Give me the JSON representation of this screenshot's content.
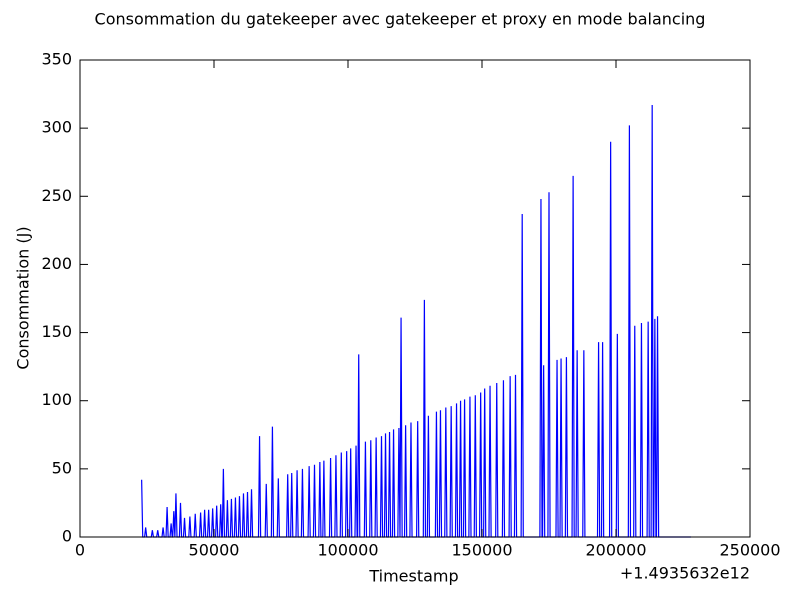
{
  "chart_data": {
    "type": "line",
    "title": "Consommation du gatekeeper avec gatekeeper et proxy en mode balancing",
    "x_label": "Timestamp",
    "y_label": "Consommation (J)",
    "x_offset_label": "+1.4935632e12",
    "color": "#0000ff",
    "xlim": [
      0,
      250000
    ],
    "xticks": [
      0,
      50000,
      100000,
      150000,
      200000,
      250000
    ],
    "ylim": [
      0,
      350
    ],
    "yticks": [
      0,
      50,
      100,
      150,
      200,
      250,
      300,
      350
    ],
    "x": [
      23000,
      23400,
      24100,
      24500,
      24900,
      26600,
      27000,
      27400,
      28600,
      29000,
      29400,
      30600,
      31000,
      31400,
      32100,
      32500,
      32900,
      33600,
      34000,
      34400,
      34600,
      35000,
      35400,
      35400,
      35800,
      36200,
      37100,
      37500,
      37900,
      38600,
      39000,
      39400,
      40600,
      41000,
      41400,
      42600,
      43000,
      43400,
      44600,
      45000,
      45400,
      46100,
      46500,
      46900,
      47600,
      48000,
      48400,
      49100,
      49500,
      49900,
      50600,
      51000,
      51400,
      52100,
      52500,
      52900,
      53100,
      53500,
      53900,
      54600,
      55000,
      55400,
      56100,
      56500,
      56900,
      57600,
      58000,
      58400,
      59100,
      59500,
      59900,
      60600,
      61000,
      61400,
      62100,
      62500,
      62900,
      63600,
      64000,
      64400,
      66600,
      67000,
      67400,
      69100,
      69500,
      69900,
      71400,
      71800,
      72200,
      73600,
      74000,
      74400,
      77100,
      77500,
      77900,
      78600,
      79000,
      79400,
      80600,
      81000,
      81400,
      82600,
      83000,
      83400,
      85100,
      85500,
      85900,
      87100,
      87500,
      87900,
      89100,
      89500,
      89900,
      90600,
      91000,
      91400,
      93100,
      93500,
      93900,
      95100,
      95500,
      95900,
      97100,
      97500,
      97900,
      99100,
      99500,
      99900,
      100600,
      101000,
      101400,
      102600,
      103000,
      103400,
      103600,
      104000,
      104400,
      106100,
      106500,
      106900,
      108100,
      108500,
      108900,
      110100,
      110500,
      110900,
      112100,
      112500,
      112900,
      113600,
      114000,
      114400,
      115100,
      115500,
      115900,
      116600,
      117000,
      117400,
      118600,
      119000,
      119400,
      119400,
      119800,
      120200,
      121100,
      121500,
      121900,
      123100,
      123500,
      123900,
      125600,
      126000,
      126400,
      128100,
      128500,
      128900,
      129600,
      130000,
      130400,
      132600,
      133000,
      133400,
      134100,
      134500,
      134900,
      136100,
      136500,
      136900,
      138100,
      138500,
      138900,
      140100,
      140500,
      140900,
      141600,
      142000,
      142400,
      143100,
      143500,
      143900,
      145100,
      145500,
      145900,
      147100,
      147500,
      147900,
      149100,
      149500,
      149900,
      150600,
      151000,
      151400,
      152600,
      153000,
      153400,
      155100,
      155500,
      155900,
      157600,
      158000,
      158400,
      160100,
      160500,
      160900,
      162100,
      162500,
      162900,
      164600,
      165000,
      165400,
      171600,
      172000,
      172400,
      172600,
      173000,
      173400,
      174600,
      175000,
      175400,
      177600,
      178000,
      178400,
      179100,
      179500,
      179900,
      181100,
      181500,
      181900,
      183600,
      184000,
      184400,
      185100,
      185500,
      185900,
      187600,
      188000,
      188400,
      193100,
      193500,
      193900,
      194600,
      195000,
      195400,
      197600,
      198000,
      198400,
      200100,
      200500,
      200900,
      204600,
      205000,
      205400,
      206600,
      207000,
      207400,
      209100,
      209500,
      209900,
      211600,
      212000,
      212400,
      213100,
      213500,
      213900,
      214100,
      214500,
      214900,
      215100,
      215500,
      215900,
      228000
    ],
    "values": [
      42,
      0,
      0,
      7,
      0,
      0,
      5,
      0,
      0,
      5,
      0,
      0,
      7,
      0,
      0,
      22,
      0,
      0,
      10,
      0,
      0,
      19,
      0,
      0,
      32,
      0,
      0,
      25,
      0,
      0,
      14,
      0,
      0,
      15,
      0,
      0,
      17,
      0,
      0,
      18,
      0,
      0,
      20,
      0,
      0,
      20,
      0,
      0,
      21,
      0,
      0,
      23,
      0,
      0,
      24,
      0,
      0,
      50,
      0,
      0,
      27,
      0,
      0,
      28,
      0,
      0,
      29,
      0,
      0,
      30,
      0,
      0,
      32,
      0,
      0,
      33,
      0,
      0,
      35,
      0,
      0,
      74,
      0,
      0,
      39,
      0,
      0,
      81,
      0,
      0,
      43,
      0,
      0,
      46,
      0,
      0,
      47,
      0,
      0,
      49,
      0,
      0,
      50,
      0,
      0,
      52,
      0,
      0,
      53,
      0,
      0,
      55,
      0,
      0,
      56,
      0,
      0,
      58,
      0,
      0,
      60,
      0,
      0,
      62,
      0,
      0,
      63,
      0,
      0,
      65,
      0,
      0,
      67,
      0,
      0,
      134,
      0,
      0,
      70,
      0,
      0,
      71,
      0,
      0,
      73,
      0,
      0,
      74,
      0,
      0,
      76,
      0,
      0,
      77,
      0,
      0,
      79,
      0,
      0,
      80,
      0,
      0,
      161,
      0,
      0,
      82,
      0,
      0,
      84,
      0,
      0,
      85,
      0,
      0,
      174,
      0,
      0,
      89,
      0,
      0,
      92,
      0,
      0,
      93,
      0,
      0,
      95,
      0,
      0,
      96,
      0,
      0,
      98,
      0,
      0,
      100,
      0,
      0,
      101,
      0,
      0,
      103,
      0,
      0,
      104,
      0,
      0,
      106,
      0,
      0,
      109,
      0,
      0,
      111,
      0,
      0,
      113,
      0,
      0,
      115,
      0,
      0,
      118,
      0,
      0,
      119,
      0,
      0,
      237,
      0,
      0,
      248,
      0,
      0,
      126,
      0,
      0,
      253,
      0,
      0,
      130,
      0,
      0,
      131,
      0,
      0,
      132,
      0,
      0,
      265,
      0,
      0,
      137,
      0,
      0,
      137,
      0,
      0,
      143,
      0,
      0,
      143,
      0,
      0,
      290,
      0,
      0,
      149,
      0,
      0,
      302,
      0,
      0,
      155,
      0,
      0,
      157,
      0,
      0,
      158,
      0,
      0,
      317,
      0,
      0,
      160,
      0,
      0,
      162,
      0,
      0
    ]
  }
}
